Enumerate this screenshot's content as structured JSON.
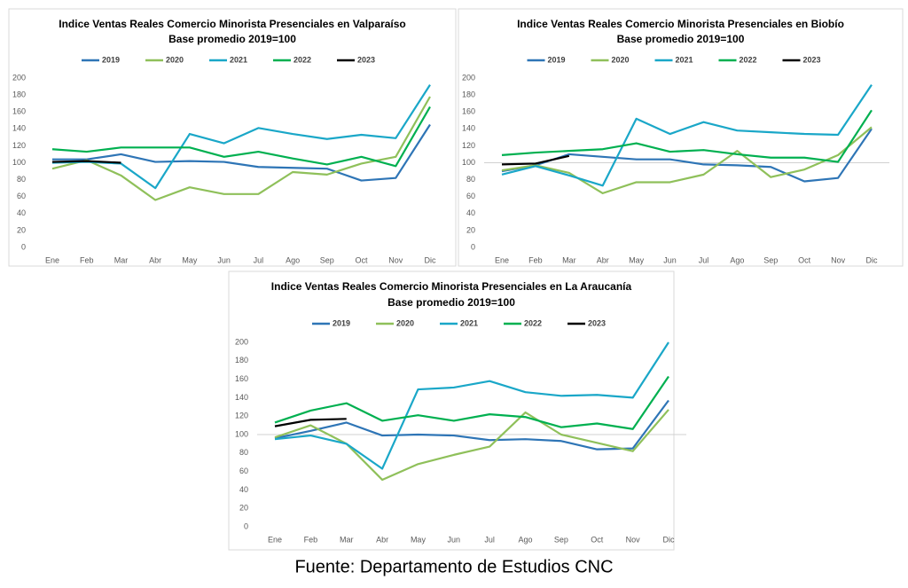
{
  "chart_data": [
    {
      "type": "line",
      "title": "Indice Ventas Reales Comercio Minorista Presenciales en Valparaíso",
      "subtitle": "Base promedio 2019=100",
      "categories": [
        "Ene",
        "Feb",
        "Mar",
        "Abr",
        "May",
        "Jun",
        "Jul",
        "Ago",
        "Sep",
        "Oct",
        "Nov",
        "Dic"
      ],
      "ylim": [
        0,
        200
      ],
      "yticks": [
        0,
        20,
        40,
        60,
        80,
        100,
        120,
        140,
        160,
        180,
        200
      ],
      "grid": false,
      "legend": "top",
      "series": [
        {
          "name": "2019",
          "color": "#2e75b6",
          "values": [
            104,
            104,
            110,
            101,
            102,
            101,
            95,
            94,
            93,
            79,
            82,
            145
          ]
        },
        {
          "name": "2020",
          "color": "#8fc05a",
          "values": [
            93,
            103,
            85,
            56,
            71,
            63,
            63,
            89,
            86,
            99,
            107,
            178
          ]
        },
        {
          "name": "2021",
          "color": "#1aa7c8",
          "values": [
            100,
            101,
            99,
            70,
            134,
            123,
            141,
            134,
            128,
            133,
            129,
            192
          ]
        },
        {
          "name": "2022",
          "color": "#00b050",
          "values": [
            116,
            113,
            118,
            118,
            118,
            107,
            113,
            105,
            98,
            107,
            96,
            166
          ]
        },
        {
          "name": "2023",
          "color": "#000000",
          "values": [
            101,
            102,
            100,
            null,
            null,
            null,
            null,
            null,
            null,
            null,
            null,
            null
          ]
        }
      ]
    },
    {
      "type": "line",
      "title": "Indice Ventas Reales Comercio Minorista Presenciales en Biobío",
      "subtitle": "Base promedio 2019=100",
      "categories": [
        "Ene",
        "Feb",
        "Mar",
        "Abr",
        "May",
        "Jun",
        "Jul",
        "Ago",
        "Sep",
        "Oct",
        "Nov",
        "Dic"
      ],
      "ylim": [
        0,
        200
      ],
      "yticks": [
        0,
        20,
        40,
        60,
        80,
        100,
        120,
        140,
        160,
        180,
        200
      ],
      "grid": false,
      "legend": "top",
      "reference_line": 100,
      "series": [
        {
          "name": "2019",
          "color": "#2e75b6",
          "values": [
            90,
            97,
            110,
            107,
            104,
            104,
            98,
            97,
            95,
            78,
            82,
            140
          ]
        },
        {
          "name": "2020",
          "color": "#8fc05a",
          "values": [
            91,
            97,
            88,
            64,
            77,
            77,
            86,
            114,
            83,
            92,
            109,
            142
          ]
        },
        {
          "name": "2021",
          "color": "#1aa7c8",
          "values": [
            86,
            96,
            85,
            73,
            152,
            134,
            148,
            138,
            136,
            134,
            133,
            192
          ]
        },
        {
          "name": "2022",
          "color": "#00b050",
          "values": [
            109,
            112,
            114,
            116,
            123,
            113,
            115,
            110,
            106,
            106,
            101,
            162
          ]
        },
        {
          "name": "2023",
          "color": "#000000",
          "values": [
            98,
            99,
            108,
            null,
            null,
            null,
            null,
            null,
            null,
            null,
            null,
            null
          ]
        }
      ]
    },
    {
      "type": "line",
      "title": "Indice Ventas Reales Comercio Minorista Presenciales en La Araucanía",
      "subtitle": "Base promedio 2019=100",
      "categories": [
        "Ene",
        "Feb",
        "Mar",
        "Abr",
        "May",
        "Jun",
        "Jul",
        "Ago",
        "Sep",
        "Oct",
        "Nov",
        "Dic"
      ],
      "ylim": [
        0,
        200
      ],
      "yticks": [
        0,
        20,
        40,
        60,
        80,
        100,
        120,
        140,
        160,
        180,
        200
      ],
      "grid": false,
      "legend": "top",
      "reference_line": 100,
      "series": [
        {
          "name": "2019",
          "color": "#2e75b6",
          "values": [
            96,
            104,
            113,
            99,
            100,
            99,
            94,
            95,
            93,
            84,
            85,
            137
          ]
        },
        {
          "name": "2020",
          "color": "#8fc05a",
          "values": [
            97,
            110,
            90,
            51,
            68,
            78,
            87,
            124,
            100,
            91,
            82,
            127
          ]
        },
        {
          "name": "2021",
          "color": "#1aa7c8",
          "values": [
            95,
            99,
            90,
            63,
            149,
            151,
            158,
            146,
            142,
            143,
            140,
            200
          ]
        },
        {
          "name": "2022",
          "color": "#00b050",
          "values": [
            113,
            126,
            134,
            115,
            121,
            115,
            122,
            119,
            108,
            112,
            106,
            163
          ]
        },
        {
          "name": "2023",
          "color": "#000000",
          "values": [
            109,
            116,
            117,
            null,
            null,
            null,
            null,
            null,
            null,
            null,
            null,
            null
          ]
        }
      ]
    }
  ],
  "footer": "Fuente: Departamento de Estudios CNC"
}
